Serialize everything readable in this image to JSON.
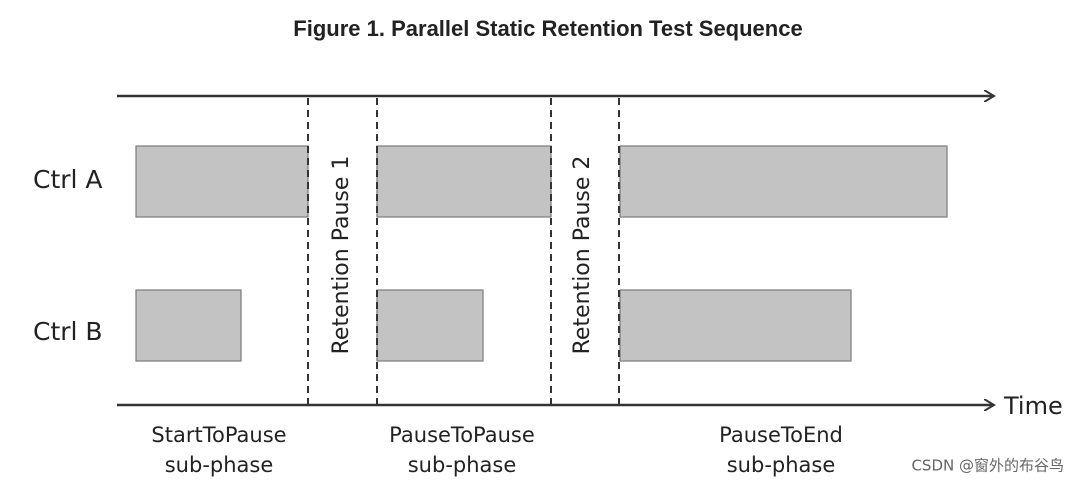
{
  "title": "Figure 1. Parallel Static Retention Test Sequence",
  "rows": [
    {
      "label": "Ctrl A"
    },
    {
      "label": "Ctrl B"
    }
  ],
  "pauses": [
    "Retention Pause 1",
    "Retention Pause 2"
  ],
  "phases": [
    {
      "line1": "StartToPause",
      "line2": "sub-phase"
    },
    {
      "line1": "PauseToPause",
      "line2": "sub-phase"
    },
    {
      "line1": "PauseToEnd",
      "line2": "sub-phase"
    }
  ],
  "axis_label": "Time",
  "watermark": "CSDN @窗外的布谷鸟"
}
